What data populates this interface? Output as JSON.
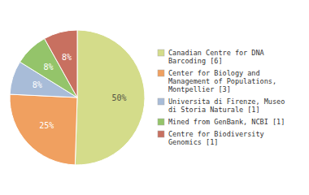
{
  "chart_data": {
    "type": "pie",
    "categories": [
      "Canadian Centre for DNA\nBarcoding [6]",
      "Center for Biology and\nManagement of Populations,\nMontpellier [3]",
      "Universita di Firenze, Museo\ndi Storia Naturale [1]",
      "Mined from GenBank, NCBI [1]",
      "Centre for Biodiversity\nGenomics [1]"
    ],
    "values": [
      50,
      25,
      8,
      8,
      8
    ],
    "value_labels": [
      "50%",
      "25%",
      "8%",
      "8%",
      "8%"
    ],
    "colors": [
      "#d4dc8a",
      "#f0a060",
      "#a8bcd8",
      "#94c46a",
      "#c87060"
    ],
    "data_labels": true,
    "legend": "right"
  }
}
